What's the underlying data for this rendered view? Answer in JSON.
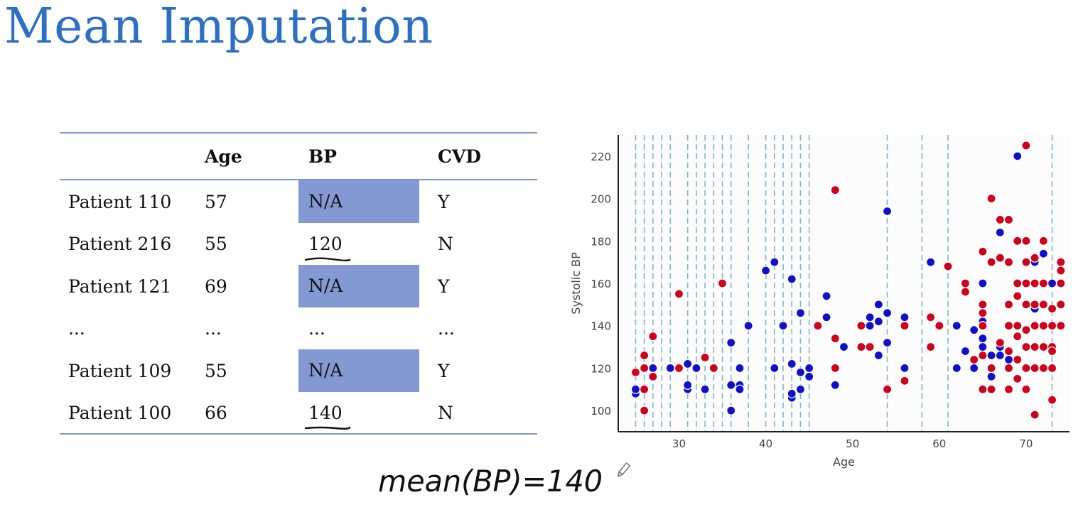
{
  "slide": {
    "title": "Mean Imputation"
  },
  "table": {
    "columns": [
      "",
      "Age",
      "BP",
      "CVD"
    ],
    "rows": [
      {
        "patient": "Patient 110",
        "age": "57",
        "bp": "N/A",
        "cvd": "Y",
        "missing": true
      },
      {
        "patient": "Patient 216",
        "age": "55",
        "bp": "120",
        "cvd": "N",
        "missing": false
      },
      {
        "patient": "Patient 121",
        "age": "69",
        "bp": "N/A",
        "cvd": "Y",
        "missing": true
      },
      {
        "patient": "...",
        "age": "...",
        "bp": "...",
        "cvd": "...",
        "missing": false
      },
      {
        "patient": "Patient 109",
        "age": "55",
        "bp": "N/A",
        "cvd": "Y",
        "missing": true
      },
      {
        "patient": "Patient 100",
        "age": "66",
        "bp": "140",
        "cvd": "N",
        "missing": false
      }
    ],
    "colors": {
      "rule": "#7b98cc",
      "missing_fill": "#8499d3"
    }
  },
  "annotation": {
    "text": "mean(BP)=140"
  },
  "chart_data": {
    "type": "scatter",
    "xlabel": "Age",
    "ylabel": "Systolic BP",
    "xlim": [
      23,
      75
    ],
    "ylim": [
      90,
      230
    ],
    "xticks": [
      30,
      40,
      50,
      60,
      70
    ],
    "yticks": [
      100,
      120,
      140,
      160,
      180,
      200,
      220
    ],
    "colors": {
      "blue": "#1010cc",
      "red": "#d0001a",
      "vline": "#7fb4d0"
    },
    "vlines": [
      25,
      26,
      27,
      28,
      29,
      31,
      32,
      33,
      34,
      35,
      36,
      38,
      40,
      41,
      42,
      43,
      44,
      45,
      54,
      58,
      61,
      73
    ],
    "series": [
      {
        "color": "blue",
        "points": [
          [
            25,
            108
          ],
          [
            25,
            110
          ],
          [
            27,
            120
          ],
          [
            29,
            120
          ],
          [
            31,
            110
          ],
          [
            31,
            112
          ],
          [
            32,
            120
          ],
          [
            33,
            110
          ],
          [
            31,
            122
          ],
          [
            36,
            132
          ],
          [
            36,
            112
          ],
          [
            37,
            112
          ],
          [
            37,
            110
          ],
          [
            37,
            120
          ],
          [
            36,
            100
          ],
          [
            38,
            140
          ],
          [
            40,
            166
          ],
          [
            41,
            170
          ],
          [
            41,
            120
          ],
          [
            42,
            140
          ],
          [
            43,
            162
          ],
          [
            43,
            106
          ],
          [
            43,
            108
          ],
          [
            43,
            122
          ],
          [
            44,
            110
          ],
          [
            44,
            118
          ],
          [
            45,
            120
          ],
          [
            45,
            116
          ],
          [
            44,
            146
          ],
          [
            47,
            144
          ],
          [
            47,
            154
          ],
          [
            48,
            112
          ],
          [
            49,
            130
          ],
          [
            52,
            140
          ],
          [
            52,
            144
          ],
          [
            53,
            150
          ],
          [
            53,
            142
          ],
          [
            53,
            126
          ],
          [
            54,
            146
          ],
          [
            54,
            132
          ],
          [
            54,
            194
          ],
          [
            56,
            144
          ],
          [
            56,
            120
          ],
          [
            59,
            170
          ],
          [
            62,
            140
          ],
          [
            62,
            120
          ],
          [
            63,
            128
          ],
          [
            64,
            120
          ],
          [
            64,
            138
          ],
          [
            65,
            160
          ],
          [
            65,
            142
          ],
          [
            65,
            140
          ],
          [
            65,
            134
          ],
          [
            65,
            130
          ],
          [
            66,
            126
          ],
          [
            66,
            116
          ],
          [
            66,
            120
          ],
          [
            67,
            184
          ],
          [
            67,
            126
          ],
          [
            67,
            130
          ],
          [
            68,
            124
          ],
          [
            68,
            150
          ],
          [
            69,
            220
          ],
          [
            69,
            140
          ],
          [
            69,
            124
          ],
          [
            70,
            150
          ],
          [
            71,
            170
          ],
          [
            71,
            148
          ],
          [
            72,
            150
          ],
          [
            72,
            174
          ],
          [
            73,
            160
          ]
        ]
      },
      {
        "color": "red",
        "points": [
          [
            25,
            118
          ],
          [
            26,
            110
          ],
          [
            26,
            100
          ],
          [
            26,
            120
          ],
          [
            26,
            126
          ],
          [
            27,
            116
          ],
          [
            27,
            135
          ],
          [
            30,
            155
          ],
          [
            30,
            120
          ],
          [
            33,
            125
          ],
          [
            34,
            120
          ],
          [
            35,
            160
          ],
          [
            46,
            140
          ],
          [
            48,
            204
          ],
          [
            48,
            134
          ],
          [
            48,
            120
          ],
          [
            51,
            140
          ],
          [
            51,
            130
          ],
          [
            52,
            130
          ],
          [
            54,
            110
          ],
          [
            56,
            140
          ],
          [
            56,
            114
          ],
          [
            59,
            144
          ],
          [
            59,
            130
          ],
          [
            60,
            140
          ],
          [
            61,
            168
          ],
          [
            63,
            160
          ],
          [
            63,
            156
          ],
          [
            64,
            124
          ],
          [
            65,
            175
          ],
          [
            65,
            150
          ],
          [
            65,
            146
          ],
          [
            65,
            140
          ],
          [
            65,
            126
          ],
          [
            65,
            110
          ],
          [
            66,
            200
          ],
          [
            66,
            170
          ],
          [
            66,
            120
          ],
          [
            66,
            110
          ],
          [
            67,
            190
          ],
          [
            67,
            172
          ],
          [
            67,
            132
          ],
          [
            68,
            190
          ],
          [
            68,
            170
          ],
          [
            68,
            150
          ],
          [
            68,
            140
          ],
          [
            68,
            128
          ],
          [
            68,
            120
          ],
          [
            68,
            110
          ],
          [
            69,
            180
          ],
          [
            69,
            160
          ],
          [
            69,
            154
          ],
          [
            69,
            140
          ],
          [
            69,
            135
          ],
          [
            69,
            124
          ],
          [
            69,
            115
          ],
          [
            70,
            225
          ],
          [
            70,
            180
          ],
          [
            70,
            170
          ],
          [
            70,
            160
          ],
          [
            70,
            150
          ],
          [
            70,
            138
          ],
          [
            70,
            130
          ],
          [
            70,
            120
          ],
          [
            70,
            110
          ],
          [
            71,
            172
          ],
          [
            71,
            160
          ],
          [
            71,
            150
          ],
          [
            71,
            140
          ],
          [
            71,
            130
          ],
          [
            71,
            120
          ],
          [
            71,
            98
          ],
          [
            72,
            180
          ],
          [
            72,
            160
          ],
          [
            72,
            150
          ],
          [
            72,
            140
          ],
          [
            72,
            130
          ],
          [
            72,
            120
          ],
          [
            73,
            148
          ],
          [
            73,
            140
          ],
          [
            73,
            130
          ],
          [
            73,
            128
          ],
          [
            73,
            120
          ],
          [
            73,
            105
          ],
          [
            74,
            170
          ],
          [
            74,
            166
          ],
          [
            74,
            160
          ],
          [
            74,
            150
          ],
          [
            74,
            140
          ]
        ]
      }
    ]
  }
}
